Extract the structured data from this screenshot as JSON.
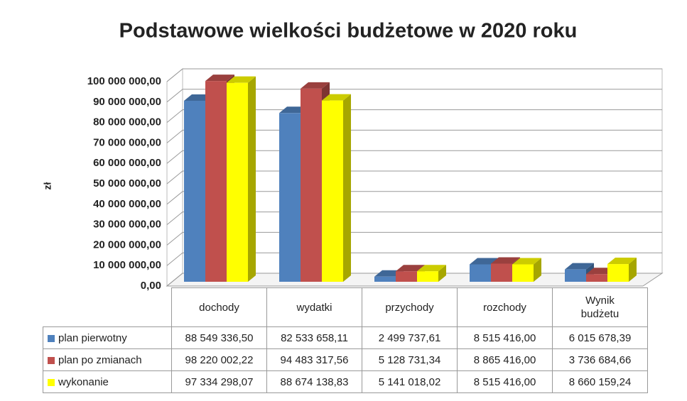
{
  "chart_data": {
    "type": "bar3d",
    "title": "Podstawowe wielkości budżetowe w 2020 roku",
    "y_label": "zł",
    "categories": [
      "dochody",
      "wydatki",
      "przychody",
      "rozchody",
      "Wynik budżetu"
    ],
    "series": [
      {
        "name": "plan pierwotny",
        "color": "#4f81bd",
        "values": [
          88549336.5,
          82533658.11,
          2499737.61,
          8515416.0,
          6015678.39
        ],
        "value_labels": [
          "88 549 336,50",
          "82 533 658,11",
          "2 499 737,61",
          "8 515 416,00",
          "6 015 678,39"
        ]
      },
      {
        "name": "plan po zmianach",
        "color": "#c0504d",
        "values": [
          98220002.22,
          94483317.56,
          5128731.34,
          8865416.0,
          3736684.66
        ],
        "value_labels": [
          "98 220 002,22",
          "94 483 317,56",
          "5 128 731,34",
          "8 865 416,00",
          "3 736 684,66"
        ]
      },
      {
        "name": "wykonanie",
        "color": "#ffff00",
        "values": [
          97334298.07,
          88674138.83,
          5141018.02,
          8515416.0,
          8660159.24
        ],
        "value_labels": [
          "97 334 298,07",
          "88 674 138,83",
          "5 141 018,02",
          "8 515 416,00",
          "8 660 159,24"
        ]
      }
    ],
    "ylim": [
      0,
      100000000
    ],
    "yticks": [
      {
        "value": 0,
        "label": "0,00"
      },
      {
        "value": 10000000,
        "label": "10 000 000,00"
      },
      {
        "value": 20000000,
        "label": "20 000 000,00"
      },
      {
        "value": 30000000,
        "label": "30 000 000,00"
      },
      {
        "value": 40000000,
        "label": "40 000 000,00"
      },
      {
        "value": 50000000,
        "label": "50 000 000,00"
      },
      {
        "value": 60000000,
        "label": "60 000 000,00"
      },
      {
        "value": 70000000,
        "label": "70 000 000,00"
      },
      {
        "value": 80000000,
        "label": "80 000 000,00"
      },
      {
        "value": 90000000,
        "label": "90 000 000,00"
      },
      {
        "value": 100000000,
        "label": "100 000 000,00"
      }
    ],
    "grid": true
  }
}
